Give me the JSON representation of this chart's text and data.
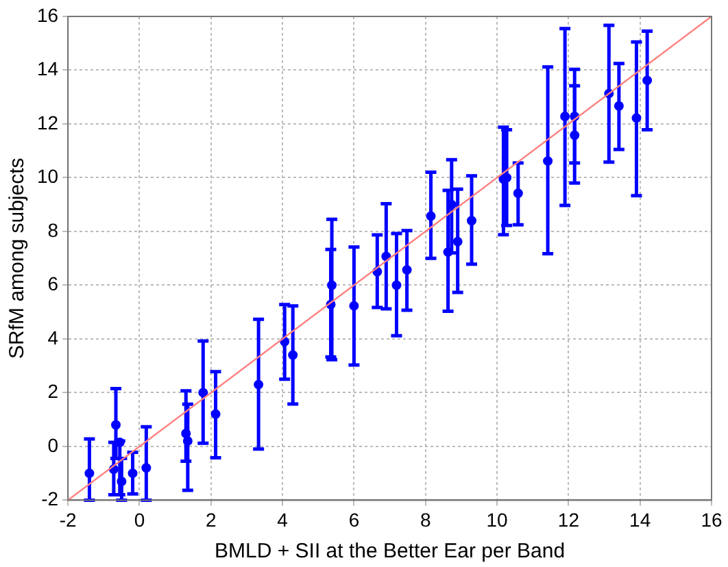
{
  "chart_data": {
    "type": "scatter",
    "xlabel": "BMLD + SII at the Better Ear per Band",
    "ylabel": "SRfM among subjects",
    "xlim": [
      -2,
      16
    ],
    "ylim": [
      -2,
      16
    ],
    "xticks": [
      -2,
      0,
      2,
      4,
      6,
      8,
      10,
      12,
      14,
      16
    ],
    "yticks": [
      -2,
      0,
      2,
      4,
      6,
      8,
      10,
      12,
      14,
      16
    ],
    "grid": true,
    "legend": false,
    "marker": "circle",
    "series": [
      {
        "type": "line",
        "color": "#ff8080",
        "x": [
          -2,
          16
        ],
        "values": [
          -2,
          16
        ],
        "marker": "none",
        "line_style": "solid"
      },
      {
        "color": "#0000ff",
        "x": [
          -1.4,
          -0.66,
          -0.55,
          -0.72,
          -0.5,
          -0.19,
          0.19,
          1.3,
          1.35,
          1.78,
          2.13,
          3.33,
          4.06,
          4.29,
          5.35,
          5.38,
          6.0,
          6.65,
          6.9,
          7.19,
          7.48,
          8.15,
          8.63,
          8.73,
          8.9,
          9.29,
          10.18,
          10.27,
          10.59,
          11.42,
          11.9,
          12.17,
          12.17,
          13.13,
          13.41,
          13.9,
          14.2
        ],
        "values": [
          -1.0,
          0.8,
          0.15,
          -0.85,
          -1.3,
          -1.0,
          -0.8,
          0.48,
          0.2,
          2.0,
          1.2,
          2.3,
          3.9,
          3.4,
          5.28,
          6.0,
          5.23,
          6.5,
          7.07,
          6.0,
          6.57,
          8.57,
          7.23,
          9.0,
          7.62,
          8.4,
          9.95,
          10.0,
          9.42,
          10.62,
          12.28,
          12.28,
          11.58,
          13.13,
          12.67,
          12.22,
          13.62
        ],
        "errors": [
          [
            -2,
            0.28
          ],
          [
            -0.45,
            2.15
          ],
          [
            -1.8,
            0.2
          ],
          [
            -1.8,
            0.15
          ],
          [
            -2,
            -0.45
          ],
          [
            -1.77,
            -0.22
          ],
          [
            -2,
            0.73
          ],
          [
            -0.55,
            2.07
          ],
          [
            -1.63,
            1.57
          ],
          [
            0.12,
            3.92
          ],
          [
            -0.42,
            2.78
          ],
          [
            -0.1,
            4.73
          ],
          [
            2.5,
            5.28
          ],
          [
            1.58,
            5.23
          ],
          [
            3.33,
            7.33
          ],
          [
            3.23,
            8.45
          ],
          [
            3.03,
            7.42
          ],
          [
            5.17,
            7.87
          ],
          [
            5.12,
            9.03
          ],
          [
            4.12,
            7.92
          ],
          [
            5.07,
            8.03
          ],
          [
            7.0,
            10.2
          ],
          [
            5.03,
            9.53
          ],
          [
            7.2,
            10.67
          ],
          [
            5.73,
            9.57
          ],
          [
            6.78,
            10.07
          ],
          [
            7.88,
            11.88
          ],
          [
            8.22,
            11.78
          ],
          [
            8.25,
            10.55
          ],
          [
            7.17,
            14.12
          ],
          [
            8.97,
            15.55
          ],
          [
            10.55,
            14.03
          ],
          [
            9.8,
            13.42
          ],
          [
            10.58,
            15.67
          ],
          [
            11.05,
            14.25
          ],
          [
            9.33,
            15.05
          ],
          [
            11.78,
            15.45
          ]
        ]
      }
    ]
  }
}
